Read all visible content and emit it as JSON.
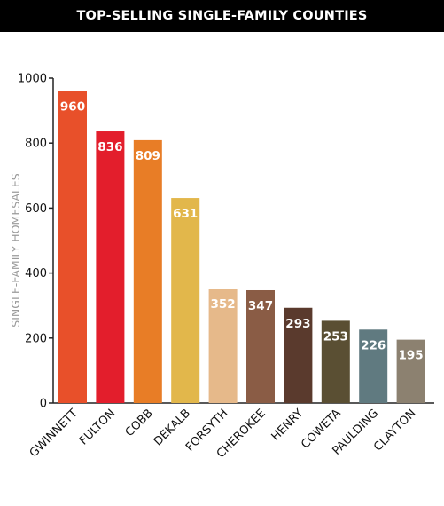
{
  "header": {
    "title": "TOP-SELLING SINGLE-FAMILY COUNTIES"
  },
  "chart_data": {
    "type": "bar",
    "title": "TOP-SELLING SINGLE-FAMILY COUNTIES",
    "xlabel": "",
    "ylabel": "SINGLE-FAMILY HOMESALES",
    "ylim": [
      0,
      1000
    ],
    "yticks": [
      0,
      200,
      400,
      600,
      800,
      1000
    ],
    "categories": [
      "GWINNETT",
      "FULTON",
      "COBB",
      "DEKALB",
      "FORSYTH",
      "CHEROKEE",
      "HENRY",
      "COWETA",
      "PAULDING",
      "CLAYTON"
    ],
    "values": [
      960,
      836,
      809,
      631,
      352,
      347,
      293,
      253,
      226,
      195
    ],
    "colors": [
      "#E8502A",
      "#E31E2C",
      "#E87D26",
      "#E2B74B",
      "#E6B98A",
      "#8A5C45",
      "#5A3A2D",
      "#5A4F33",
      "#607A80",
      "#8C8170"
    ],
    "grid": false,
    "legend": "none"
  }
}
